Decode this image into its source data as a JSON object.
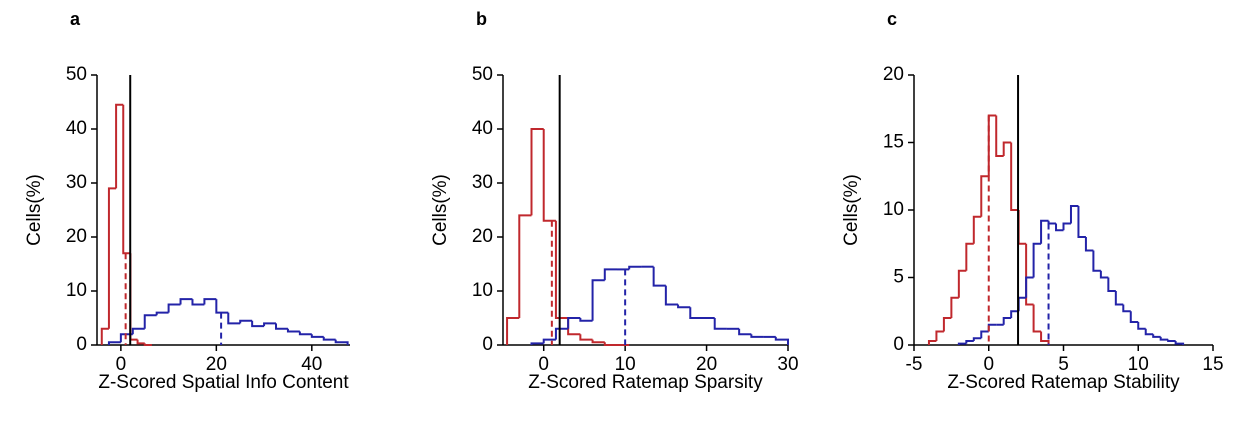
{
  "chart_data": [
    {
      "type": "histogram",
      "label": "a",
      "xlabel": "Z-Scored Spatial Info Content",
      "ylabel": "Cells(%)",
      "xlim": [
        -5,
        48
      ],
      "ylim": [
        0,
        50
      ],
      "xticks": [
        0,
        20,
        40
      ],
      "yticks": [
        0,
        10,
        20,
        30,
        40,
        50
      ],
      "threshold": 1.96,
      "series": [
        {
          "color": "#c0282d",
          "bins": [
            -4,
            -2.5,
            -1,
            0.5,
            2,
            3.5,
            5,
            6.5
          ],
          "values": [
            3,
            29,
            44.5,
            17,
            1,
            0.3,
            0
          ],
          "median": 1
        },
        {
          "color": "#2323a8",
          "bins": [
            -2.5,
            0,
            2.5,
            5,
            7.5,
            10,
            12.5,
            15,
            17.5,
            20,
            22.5,
            25,
            27.5,
            30,
            32.5,
            35,
            37.5,
            40,
            42.5,
            45,
            47.5
          ],
          "values": [
            0.5,
            2,
            3,
            5.5,
            6,
            7.5,
            8.5,
            7.5,
            8.5,
            6,
            4,
            4.5,
            3.5,
            4,
            3,
            2.5,
            2,
            1.5,
            1,
            0.5
          ],
          "median": 21
        }
      ]
    },
    {
      "type": "histogram",
      "label": "b",
      "xlabel": "Z-Scored Ratemap Sparsity",
      "ylabel": "Cells(%)",
      "xlim": [
        -5,
        30
      ],
      "ylim": [
        0,
        50
      ],
      "xticks": [
        0,
        10,
        20,
        30
      ],
      "yticks": [
        0,
        10,
        20,
        30,
        40,
        50
      ],
      "threshold": 1.96,
      "series": [
        {
          "color": "#c0282d",
          "bins": [
            -4.5,
            -3,
            -1.5,
            0,
            1.5,
            3,
            4.5,
            6,
            7.5,
            9,
            10.5
          ],
          "values": [
            5,
            24,
            40,
            23,
            5,
            2,
            1,
            0.5,
            0,
            0
          ],
          "median": 1
        },
        {
          "color": "#2323a8",
          "bins": [
            -1.5,
            0,
            1.5,
            3,
            4.5,
            6,
            7.5,
            9,
            10.5,
            12,
            13.5,
            15,
            16.5,
            18,
            19.5,
            21,
            22.5,
            24,
            25.5,
            27,
            28.5,
            30
          ],
          "values": [
            0.3,
            1,
            3,
            5,
            4.5,
            12,
            14,
            14,
            14.5,
            14.5,
            11,
            7.5,
            7,
            5,
            5,
            3,
            3,
            2,
            1.5,
            1.5,
            1
          ],
          "median": 10
        }
      ]
    },
    {
      "type": "histogram",
      "label": "c",
      "xlabel": "Z-Scored Ratemap Stability",
      "ylabel": "Cells(%)",
      "xlim": [
        -5,
        15
      ],
      "ylim": [
        0,
        20
      ],
      "xticks": [
        -5,
        0,
        5,
        10,
        15
      ],
      "yticks": [
        0,
        5,
        10,
        15,
        20
      ],
      "threshold": 1.96,
      "series": [
        {
          "color": "#c0282d",
          "bins": [
            -4,
            -3.5,
            -3,
            -2.5,
            -2,
            -1.5,
            -1,
            -0.5,
            0,
            0.5,
            1,
            1.5,
            2,
            2.5,
            3,
            3.5,
            4
          ],
          "values": [
            0.3,
            1,
            2,
            3.5,
            5.5,
            7.5,
            9.5,
            12.5,
            17,
            14,
            15,
            10,
            7.5,
            3,
            1,
            0.3
          ],
          "median": 0
        },
        {
          "color": "#2323a8",
          "bins": [
            -2,
            -1.5,
            -1,
            -0.5,
            0,
            0.5,
            1,
            1.5,
            2,
            2.5,
            3,
            3.5,
            4,
            4.5,
            5,
            5.5,
            6,
            6.5,
            7,
            7.5,
            8,
            8.5,
            9,
            9.5,
            10,
            10.5,
            11,
            11.5,
            12,
            12.5,
            13
          ],
          "values": [
            0.1,
            0.3,
            0.5,
            1,
            1.5,
            1.5,
            2,
            2.5,
            3.5,
            5,
            7.5,
            9.2,
            9,
            8.5,
            9,
            10.3,
            8,
            7,
            5.5,
            5,
            4,
            3,
            2.5,
            1.7,
            1.2,
            0.8,
            0.6,
            0.4,
            0.3,
            0.1
          ],
          "median": 4
        }
      ]
    }
  ]
}
